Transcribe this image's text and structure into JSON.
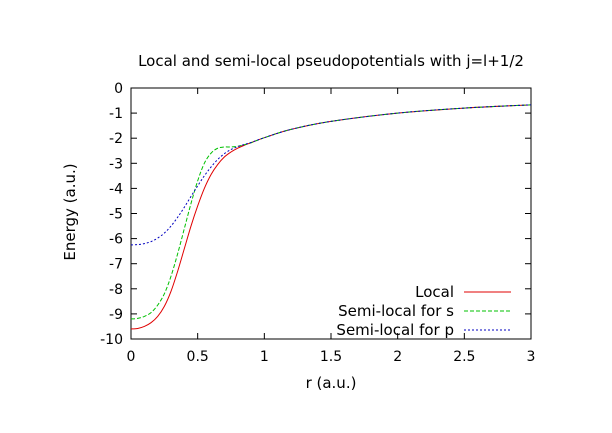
{
  "chart_data": {
    "type": "line",
    "title": "Local and semi-local pseudopotentials with j=l+1/2",
    "xlabel": "r (a.u.)",
    "ylabel": "Energy (a.u.)",
    "xlim": [
      0,
      3
    ],
    "ylim": [
      -10,
      0
    ],
    "x_ticks": [
      0,
      0.5,
      1,
      1.5,
      2,
      2.5,
      3
    ],
    "x_tick_labels": [
      "0",
      "0.5",
      "1",
      "1.5",
      "2",
      "2.5",
      "3"
    ],
    "y_ticks": [
      0,
      -1,
      -2,
      -3,
      -4,
      -5,
      -6,
      -7,
      -8,
      -9,
      -10
    ],
    "y_tick_labels": [
      "0",
      "-1",
      "-2",
      "-3",
      "-4",
      "-5",
      "-6",
      "-7",
      "-8",
      "-9",
      "-10"
    ],
    "grid": false,
    "legend_position": "bottom-right",
    "series": [
      {
        "name": "Local",
        "color": "#e00000",
        "dash": "solid",
        "x": [
          0,
          0.05,
          0.1,
          0.15,
          0.2,
          0.25,
          0.3,
          0.35,
          0.4,
          0.45,
          0.5,
          0.55,
          0.6,
          0.65,
          0.7,
          0.75,
          0.8,
          0.85,
          0.9,
          1.0,
          1.2,
          1.5,
          2.0,
          2.5,
          3.0
        ],
        "y": [
          -9.6,
          -9.58,
          -9.5,
          -9.35,
          -9.1,
          -8.7,
          -8.1,
          -7.3,
          -6.4,
          -5.5,
          -4.7,
          -4.0,
          -3.45,
          -3.05,
          -2.75,
          -2.55,
          -2.4,
          -2.28,
          -2.18,
          -1.98,
          -1.65,
          -1.33,
          -1.0,
          -0.8,
          -0.67
        ]
      },
      {
        "name": "Semi-local for s",
        "color": "#00c000",
        "dash": "dash",
        "x": [
          0,
          0.05,
          0.1,
          0.15,
          0.2,
          0.25,
          0.3,
          0.35,
          0.4,
          0.45,
          0.5,
          0.55,
          0.6,
          0.65,
          0.7,
          0.75,
          0.8,
          0.85,
          0.9,
          1.0,
          1.2,
          1.5,
          2.0,
          2.5,
          3.0
        ],
        "y": [
          -9.2,
          -9.18,
          -9.1,
          -8.95,
          -8.65,
          -8.2,
          -7.5,
          -6.6,
          -5.6,
          -4.6,
          -3.7,
          -3.0,
          -2.6,
          -2.4,
          -2.35,
          -2.35,
          -2.32,
          -2.26,
          -2.18,
          -1.98,
          -1.65,
          -1.33,
          -1.0,
          -0.8,
          -0.67
        ]
      },
      {
        "name": "Semi-local for p",
        "color": "#0000c0",
        "dash": "dot",
        "x": [
          0,
          0.05,
          0.1,
          0.15,
          0.2,
          0.25,
          0.3,
          0.35,
          0.4,
          0.45,
          0.5,
          0.55,
          0.6,
          0.65,
          0.7,
          0.75,
          0.8,
          0.85,
          0.9,
          1.0,
          1.2,
          1.5,
          2.0,
          2.5,
          3.0
        ],
        "y": [
          -6.25,
          -6.24,
          -6.2,
          -6.12,
          -5.98,
          -5.78,
          -5.5,
          -5.15,
          -4.75,
          -4.32,
          -3.9,
          -3.5,
          -3.15,
          -2.85,
          -2.62,
          -2.45,
          -2.34,
          -2.25,
          -2.17,
          -1.98,
          -1.65,
          -1.33,
          -1.0,
          -0.8,
          -0.67
        ]
      }
    ]
  }
}
